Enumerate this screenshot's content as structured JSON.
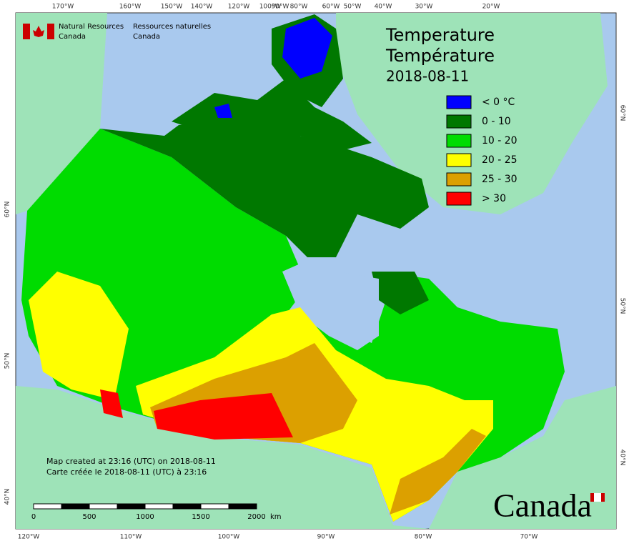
{
  "agency": {
    "en": [
      "Natural Resources",
      "Canada"
    ],
    "fr": [
      "Ressources naturelles",
      "Canada"
    ]
  },
  "title": [
    "Temperature",
    "Température",
    "2018-08-11"
  ],
  "legend": [
    {
      "label": "< 0 °C",
      "color": "#0000ff"
    },
    {
      "label": "0 - 10",
      "color": "#007800"
    },
    {
      "label": "10 - 20",
      "color": "#00dc00"
    },
    {
      "label": "20 - 25",
      "color": "#ffff00"
    },
    {
      "label": "25 - 30",
      "color": "#dca000"
    },
    {
      "label": "> 30",
      "color": "#ff0000"
    }
  ],
  "top_longitudes": [
    "170°W",
    "160°W",
    "150°W",
    "140°W",
    "120°W",
    "100°W",
    "90°W",
    "80°W",
    "60°W",
    "50°W",
    "40°W",
    "30°W",
    "20°W"
  ],
  "bottom_longitudes": [
    "120°W",
    "110°W",
    "100°W",
    "90°W",
    "80°W",
    "70°W"
  ],
  "left_latitudes": [
    "60°N",
    "50°N",
    "40°N"
  ],
  "right_latitudes": [
    "60°N",
    "50°N",
    "40°N"
  ],
  "footer": [
    "Map created at 23:16 (UTC) on 2018-08-11",
    "Carte créée le 2018-08-11 (UTC) à 23:16"
  ],
  "scale_bar": {
    "labels": [
      "0",
      "500",
      "1000",
      "1500",
      "2000"
    ],
    "unit": "km"
  },
  "wordmark": "Canada"
}
